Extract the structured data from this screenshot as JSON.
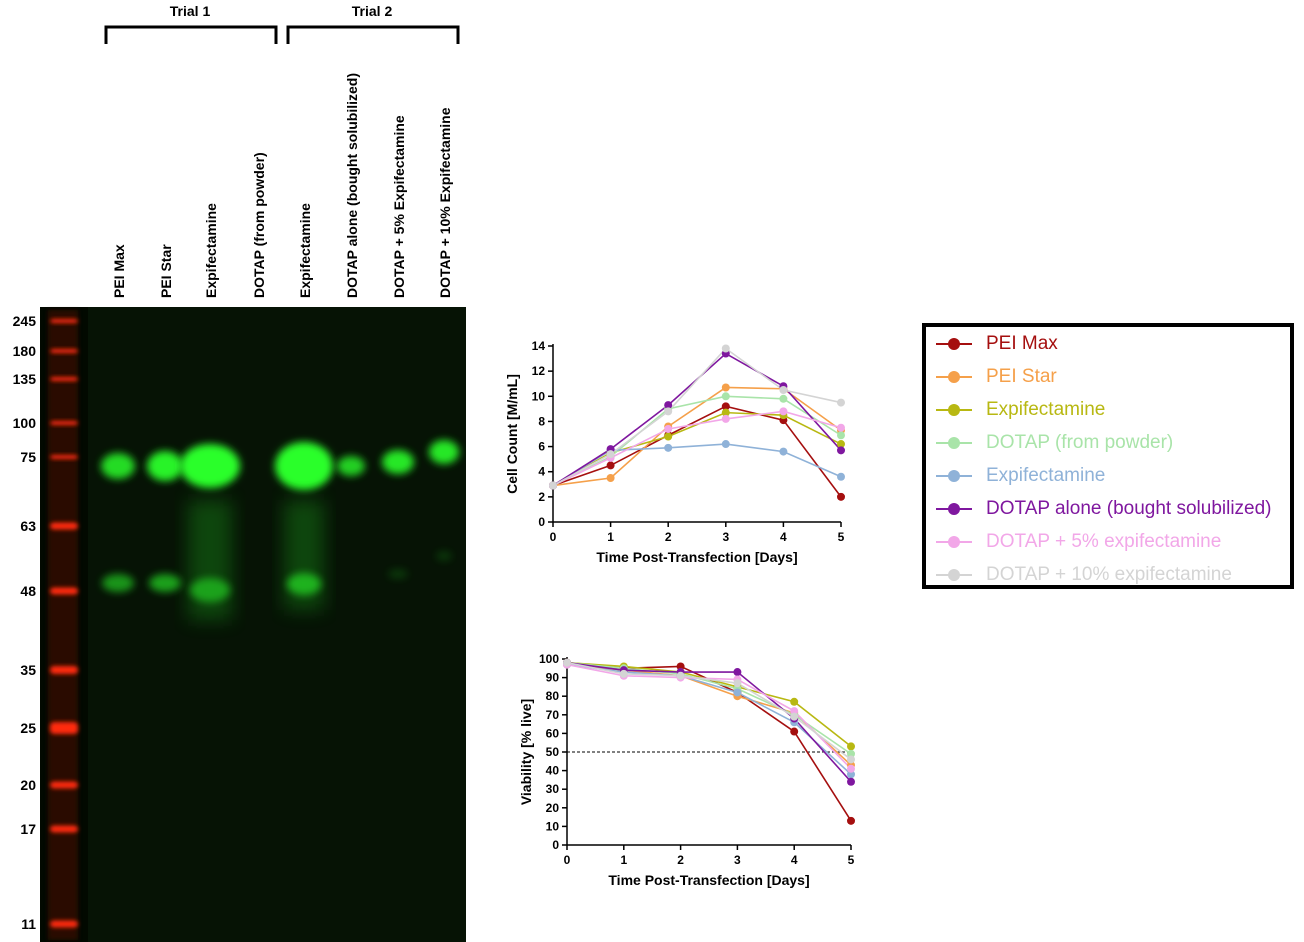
{
  "gel": {
    "trial_labels": [
      "Trial 1",
      "Trial 2"
    ],
    "lanes": [
      "PEI Max",
      "PEI Star",
      "Expifectamine",
      "DOTAP (from powder)",
      "Expifectamine",
      "DOTAP alone (bought solubilized)",
      "DOTAP + 5% Expifectamine",
      "DOTAP + 10% Expifectamine"
    ],
    "ladder_markers": [
      "245",
      "180",
      "135",
      "100",
      "75",
      "63",
      "48",
      "35",
      "25",
      "20",
      "17",
      "11"
    ],
    "colors": {
      "background": "#020900",
      "ladder": "#ff2a10",
      "band": "#2cff2c"
    }
  },
  "chart_data": [
    {
      "type": "line",
      "title": "",
      "xlabel": "Time Post-Transfection [Days]",
      "ylabel": "Cell Count [M/mL]",
      "x": [
        0,
        1,
        2,
        3,
        4,
        5
      ],
      "xlim": [
        0,
        5
      ],
      "ylim": [
        0,
        14
      ],
      "xticks": [
        "0",
        "1",
        "2",
        "3",
        "4",
        "5"
      ],
      "yticks": [
        "0",
        "2",
        "4",
        "6",
        "8",
        "10",
        "12",
        "14"
      ],
      "series": [
        {
          "name": "PEI Max",
          "color": "#a50f0f",
          "values": [
            2.9,
            4.5,
            6.9,
            9.2,
            8.1,
            2.0
          ]
        },
        {
          "name": "PEI Star",
          "color": "#f5a04a",
          "values": [
            2.9,
            3.5,
            7.6,
            10.7,
            10.6,
            7.3
          ]
        },
        {
          "name": "Expifectamine",
          "color": "#b8b812",
          "values": [
            2.9,
            5.5,
            6.8,
            8.7,
            8.5,
            6.2
          ]
        },
        {
          "name": "DOTAP (from powder)",
          "color": "#a9e4a9",
          "values": [
            2.9,
            5.2,
            9.0,
            10.0,
            9.8,
            6.9
          ]
        },
        {
          "name": "Expifectamine",
          "color": "#8fb2d8",
          "values": [
            2.9,
            5.7,
            5.9,
            6.2,
            5.6,
            3.6
          ]
        },
        {
          "name": "DOTAP alone (bought solubilized)",
          "color": "#7f179f",
          "values": [
            2.9,
            5.8,
            9.3,
            13.4,
            10.8,
            5.7
          ]
        },
        {
          "name": "DOTAP + 5% expifectamine",
          "color": "#f2a7e8",
          "values": [
            2.9,
            5.1,
            7.4,
            8.2,
            8.8,
            7.5
          ]
        },
        {
          "name": "DOTAP + 10% expifectamine",
          "color": "#d4d4d4",
          "values": [
            2.9,
            5.4,
            8.8,
            13.8,
            10.5,
            9.5
          ]
        }
      ]
    },
    {
      "type": "line",
      "title": "",
      "xlabel": "Time Post-Transfection [Days]",
      "ylabel": "Viability [% live]",
      "x": [
        0,
        1,
        2,
        3,
        4,
        5
      ],
      "xlim": [
        0,
        5
      ],
      "ylim": [
        0,
        100
      ],
      "xticks": [
        "0",
        "1",
        "2",
        "3",
        "4",
        "5"
      ],
      "yticks": [
        "0",
        "10",
        "20",
        "30",
        "40",
        "50",
        "60",
        "70",
        "80",
        "90",
        "100"
      ],
      "reference_line": 50,
      "series": [
        {
          "name": "PEI Max",
          "color": "#a50f0f",
          "values": [
            98,
            95,
            96,
            82,
            61,
            13
          ]
        },
        {
          "name": "PEI Star",
          "color": "#f5a04a",
          "values": [
            97,
            94,
            91,
            80,
            71,
            43
          ]
        },
        {
          "name": "Expifectamine",
          "color": "#b8b812",
          "values": [
            98,
            96,
            93,
            85,
            77,
            53
          ]
        },
        {
          "name": "DOTAP (from powder)",
          "color": "#a9e4a9",
          "values": [
            98,
            95,
            92,
            84,
            70,
            49
          ]
        },
        {
          "name": "Expifectamine",
          "color": "#8fb2d8",
          "values": [
            97,
            93,
            91,
            82,
            66,
            38
          ]
        },
        {
          "name": "DOTAP alone (bought solubilized)",
          "color": "#7f179f",
          "values": [
            98,
            94,
            93,
            93,
            68,
            34
          ]
        },
        {
          "name": "DOTAP + 5% expifectamine",
          "color": "#f2a7e8",
          "values": [
            97,
            91,
            90,
            89,
            72,
            41
          ]
        },
        {
          "name": "DOTAP + 10% expifectamine",
          "color": "#d4d4d4",
          "values": [
            98,
            92,
            91,
            87,
            69,
            46
          ]
        }
      ]
    }
  ],
  "legend": {
    "items": [
      {
        "label": "PEI Max",
        "color": "#a50f0f"
      },
      {
        "label": "PEI Star",
        "color": "#f5a04a"
      },
      {
        "label": "Expifectamine",
        "color": "#b8b812"
      },
      {
        "label": "DOTAP (from powder)",
        "color": "#a9e4a9"
      },
      {
        "label": "Expifectamine",
        "color": "#8fb2d8"
      },
      {
        "label": "DOTAP alone (bought solubilized)",
        "color": "#7f179f"
      },
      {
        "label": "DOTAP + 5% expifectamine",
        "color": "#f2a7e8"
      },
      {
        "label": "DOTAP + 10% expifectamine",
        "color": "#d4d4d4"
      }
    ]
  }
}
